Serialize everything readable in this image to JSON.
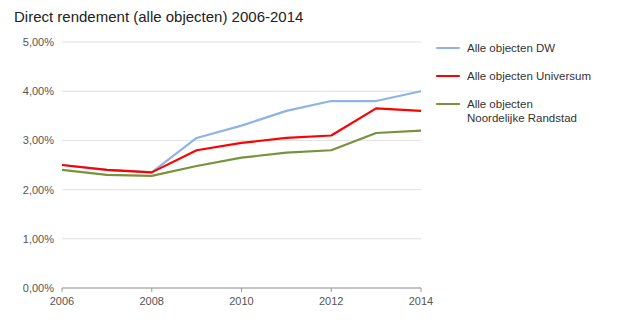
{
  "chart_data": {
    "type": "line",
    "title": "Direct rendement (alle objecten) 2006-2014",
    "x": [
      2006,
      2007,
      2008,
      2009,
      2010,
      2011,
      2012,
      2013,
      2014
    ],
    "series": [
      {
        "name": "Alle objecten DW",
        "color": "#8db4e2",
        "values": [
          0.025,
          0.024,
          0.0235,
          0.0305,
          0.033,
          0.036,
          0.038,
          0.038,
          0.04
        ]
      },
      {
        "name": "Alle objecten Universum",
        "color": "#ff0000",
        "values": [
          0.025,
          0.024,
          0.0235,
          0.028,
          0.0295,
          0.0305,
          0.031,
          0.0365,
          0.036
        ]
      },
      {
        "name": "Alle objecten\nNoordelijke Randstad",
        "color": "#76933c",
        "values": [
          0.024,
          0.023,
          0.0228,
          0.0248,
          0.0265,
          0.0275,
          0.028,
          0.0315,
          0.032
        ]
      }
    ],
    "xlim": [
      2006,
      2014
    ],
    "xticks": [
      2006,
      2008,
      2010,
      2012,
      2014
    ],
    "ylim": [
      0.0,
      0.05
    ],
    "yticks": [
      {
        "value": 0.0,
        "label": "0,00%"
      },
      {
        "value": 0.01,
        "label": "1,00%"
      },
      {
        "value": 0.02,
        "label": "2,00%"
      },
      {
        "value": 0.03,
        "label": "3,00%"
      },
      {
        "value": 0.04,
        "label": "4,00%"
      },
      {
        "value": 0.05,
        "label": "5,00%"
      }
    ],
    "grid": true,
    "legend": "right"
  }
}
